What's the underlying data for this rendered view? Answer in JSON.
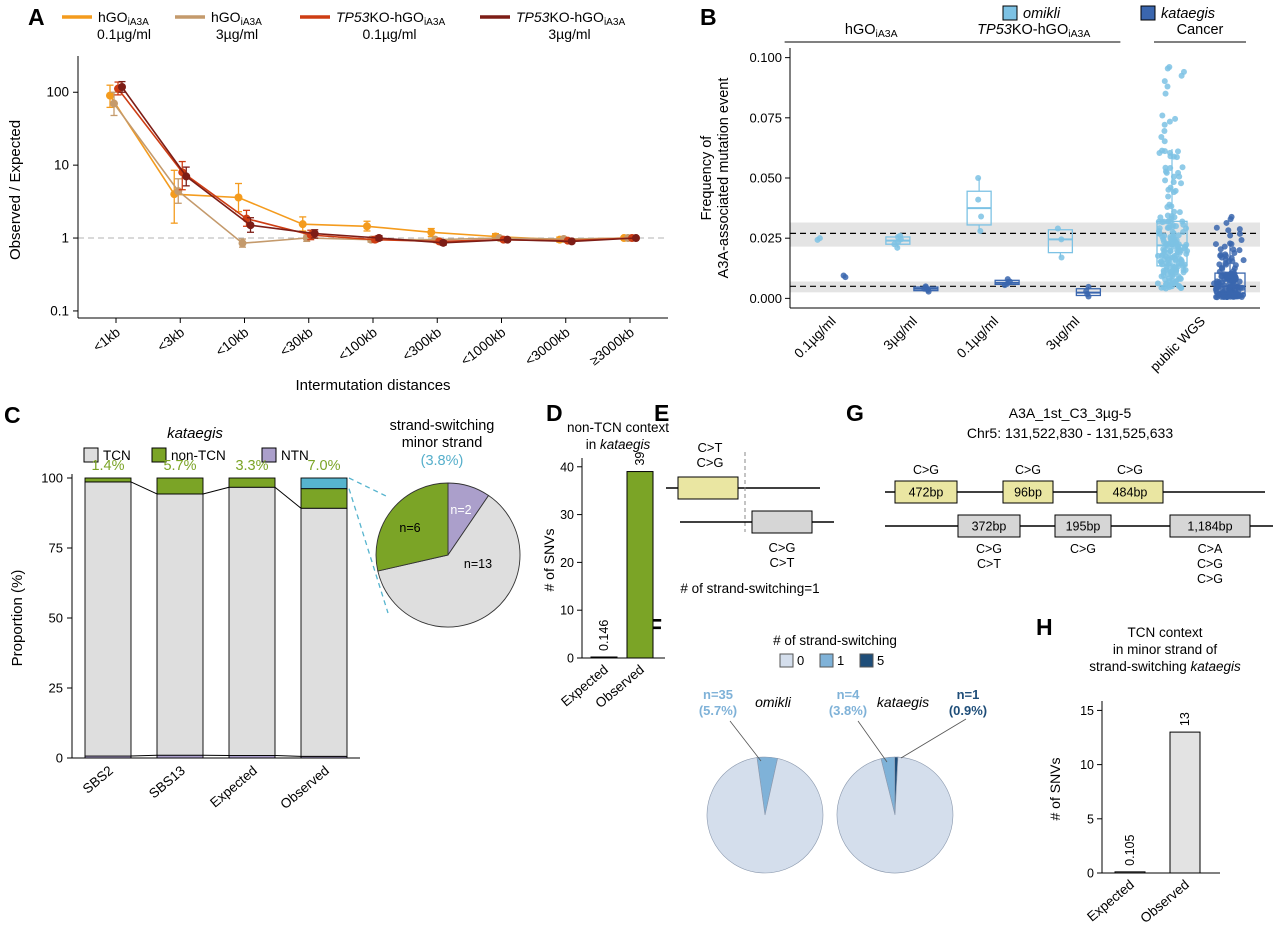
{
  "panels": {
    "A": {
      "label": "A",
      "legend": [
        {
          "prefix_italic": "",
          "name": "hGO",
          "sub": "iA3A",
          "dose": "0.1µg/ml",
          "color": "#F49B1D"
        },
        {
          "prefix_italic": "",
          "name": "hGO",
          "sub": "iA3A",
          "dose": "3µg/ml",
          "color": "#C49A6C"
        },
        {
          "prefix_italic": "TP53",
          "name": "KO-hGO",
          "sub": "iA3A",
          "dose": "0.1µg/ml",
          "color": "#CE3D13"
        },
        {
          "prefix_italic": "TP53",
          "name": "KO-hGO",
          "sub": "iA3A",
          "dose": "3µg/ml",
          "color": "#7D1D16"
        }
      ]
    },
    "B": {
      "label": "B",
      "legend": [
        {
          "label": "omikli",
          "color": "#7DC2E4"
        },
        {
          "label": "kataegis",
          "color": "#3A66AE"
        }
      ]
    },
    "C": {
      "label": "C",
      "title": "kataegis",
      "legend": [
        {
          "label": "TCN",
          "color": "#DEDEDE"
        },
        {
          "label": "non-TCN",
          "color": "#7BA426"
        },
        {
          "label": "NTN",
          "color": "#AB9FCB"
        }
      ]
    },
    "D": {
      "label": "D",
      "title_line1": "non-TCN context",
      "title_line2_prefix": "in ",
      "title_line2_italic": "kataegis"
    },
    "E": {
      "label": "E",
      "top_mut_labels": [
        "C>T",
        "C>G"
      ],
      "bottom_mut_labels": [
        "C>G",
        "C>T"
      ],
      "caption": "# of strand-switching=1",
      "top_box_color": "#EAE6A2",
      "bottom_box_color": "#D6D6D6"
    },
    "F": {
      "label": "F"
    },
    "G": {
      "label": "G",
      "title": "A3A_1st_C3_3µg-5",
      "subtitle": "Chr5: 131,522,830 - 131,525,633",
      "top_box_color": "#EAE6A2",
      "bottom_box_color": "#D6D6D6",
      "top_boxes": [
        {
          "label": "472bp",
          "muts": [
            "C>G"
          ]
        },
        {
          "label": "96bp",
          "muts": [
            "C>G"
          ]
        },
        {
          "label": "484bp",
          "muts": [
            "C>G"
          ]
        }
      ],
      "bottom_boxes": [
        {
          "label": "372bp",
          "muts": [
            "C>G",
            "C>T"
          ]
        },
        {
          "label": "195bp",
          "muts": [
            "C>G"
          ]
        },
        {
          "label": "1,184bp",
          "muts": [
            "C>A",
            "C>G",
            "C>G"
          ]
        }
      ]
    },
    "H": {
      "label": "H",
      "title_line1": "TCN context",
      "title_line2": "in minor strand of",
      "title_line3_prefix": "strand-switching ",
      "title_line3_italic": "kataegis"
    }
  },
  "chart_data": [
    {
      "panel": "A",
      "type": "line",
      "x": [
        "<1kb",
        "<3kb",
        "<10kb",
        "<30kb",
        "<100kb",
        "<300kb",
        "<1000kb",
        "<3000kb",
        "≥3000kb"
      ],
      "xlabel": "Intermutation distances",
      "ylabel": "Observed / Expected",
      "yscale": "log",
      "yticks": [
        0.1,
        1,
        10,
        100
      ],
      "ylim": [
        0.08,
        260
      ],
      "refline": 1,
      "series": [
        {
          "key": "hGO-0.1ug",
          "color": "#F49B1D",
          "values": [
            90,
            4.0,
            3.6,
            1.55,
            1.45,
            1.2,
            1.05,
            0.95,
            1.0
          ],
          "err_lo": [
            62,
            1.6,
            2.3,
            1.25,
            1.25,
            1.05,
            0.95,
            0.88,
            0.97
          ],
          "err_hi": [
            125,
            8.5,
            5.6,
            1.95,
            1.7,
            1.35,
            1.15,
            1.03,
            1.03
          ]
        },
        {
          "key": "hGO-3ug",
          "color": "#C49A6C",
          "values": [
            70,
            4.4,
            0.85,
            1.0,
            0.95,
            0.95,
            1.0,
            0.97,
            1.0
          ],
          "err_lo": [
            48,
            3.0,
            0.75,
            0.9,
            0.88,
            0.9,
            0.95,
            0.93,
            0.98
          ],
          "err_hi": [
            100,
            6.5,
            0.97,
            1.1,
            1.03,
            1.0,
            1.05,
            1.01,
            1.02
          ]
        },
        {
          "key": "TP53KO-0.1ug",
          "color": "#CE3D13",
          "values": [
            112,
            8.0,
            1.85,
            1.1,
            0.95,
            0.9,
            0.95,
            0.92,
            1.0
          ],
          "err_lo": [
            92,
            4.6,
            1.45,
            0.95,
            0.88,
            0.85,
            0.9,
            0.88,
            0.97
          ],
          "err_hi": [
            138,
            11.2,
            2.4,
            1.28,
            1.05,
            0.96,
            1.0,
            0.96,
            1.03
          ]
        },
        {
          "key": "TP53KO-3ug",
          "color": "#7D1D16",
          "values": [
            118,
            7.0,
            1.5,
            1.15,
            1.0,
            0.86,
            0.95,
            0.9,
            1.0
          ],
          "err_lo": [
            100,
            5.2,
            1.2,
            1.0,
            0.93,
            0.8,
            0.9,
            0.86,
            0.97
          ],
          "err_hi": [
            140,
            9.4,
            1.9,
            1.3,
            1.08,
            0.92,
            1.0,
            0.94,
            1.03
          ]
        }
      ]
    },
    {
      "panel": "B",
      "type": "box-dot",
      "ylabel_line1": "Frequency of",
      "ylabel_line2": "A3A-associated  mutation event",
      "yticks": [
        0,
        0.025,
        0.05,
        0.075,
        0.1
      ],
      "ylim": [
        -0.004,
        0.104
      ],
      "categories": [
        "0.1µg/ml",
        "3µg/ml",
        "0.1µg/ml",
        "3µg/ml",
        "public WGS"
      ],
      "groups": [
        {
          "label_italic": "",
          "label": "hGO",
          "sub": "iA3A",
          "cats": [
            0,
            1
          ]
        },
        {
          "label_italic": "TP53",
          "label": "KO-hGO",
          "sub": "iA3A",
          "cats": [
            2,
            3
          ]
        },
        {
          "label_italic": "",
          "label": "Cancer",
          "sub": "",
          "cats": [
            4,
            4
          ]
        }
      ],
      "reflines": [
        {
          "y": 0.027,
          "band_lo": 0.0215,
          "band_hi": 0.0315
        },
        {
          "y": 0.005,
          "band_lo": 0.0025,
          "band_hi": 0.007
        }
      ],
      "series": [
        {
          "name": "omikli",
          "color": "#7DC2E4",
          "data": [
            {
              "dots": [
                0.0243,
                0.025
              ],
              "box": null
            },
            {
              "dots": [
                0.021,
                0.0225,
                0.0235,
                0.0245,
                0.0255,
                0.026
              ],
              "box": {
                "q1": 0.0225,
                "med": 0.024,
                "q3": 0.0255,
                "lo": 0.021,
                "hi": 0.026
              }
            },
            {
              "dots": [
                0.028,
                0.034,
                0.041,
                0.05
              ],
              "box": {
                "q1": 0.0305,
                "med": 0.0375,
                "q3": 0.0445,
                "lo": 0.028,
                "hi": 0.05
              }
            },
            {
              "dots": [
                0.017,
                0.0245,
                0.029
              ],
              "box": {
                "q1": 0.019,
                "med": 0.0245,
                "q3": 0.0285,
                "lo": 0.017,
                "hi": 0.029
              }
            },
            {
              "gen": {
                "n": 190,
                "min": 0.004,
                "q1": 0.0135,
                "med": 0.022,
                "q3": 0.032,
                "whi": 0.062,
                "max": 0.098
              },
              "box": {
                "q1": 0.0135,
                "med": 0.022,
                "q3": 0.032,
                "lo": 0.004,
                "hi": 0.062
              }
            }
          ]
        },
        {
          "name": "kataegis",
          "color": "#3A66AE",
          "data": [
            {
              "dots": [
                0.0088,
                0.0095
              ],
              "box": null
            },
            {
              "dots": [
                0.0028,
                0.0035,
                0.004,
                0.0045,
                0.005
              ],
              "box": {
                "q1": 0.0032,
                "med": 0.004,
                "q3": 0.0047,
                "lo": 0.0028,
                "hi": 0.005
              }
            },
            {
              "dots": [
                0.0055,
                0.006,
                0.007,
                0.008
              ],
              "box": {
                "q1": 0.0058,
                "med": 0.0065,
                "q3": 0.0075,
                "lo": 0.0055,
                "hi": 0.008
              }
            },
            {
              "dots": [
                0.0008,
                0.0018,
                0.003,
                0.0048
              ],
              "box": {
                "q1": 0.0012,
                "med": 0.0024,
                "q3": 0.004,
                "lo": 0.0008,
                "hi": 0.0048
              }
            },
            {
              "gen": {
                "n": 160,
                "min": 0.0004,
                "q1": 0.002,
                "med": 0.005,
                "q3": 0.0105,
                "whi": 0.023,
                "max": 0.034
              },
              "box": {
                "q1": 0.002,
                "med": 0.005,
                "q3": 0.0105,
                "lo": 0.0004,
                "hi": 0.023
              }
            }
          ]
        }
      ]
    },
    {
      "panel": "C",
      "type": "stacked-bar",
      "ylabel": "Proportion (%)",
      "yticks": [
        0,
        25,
        50,
        75,
        100
      ],
      "categories": [
        "SBS2",
        "SBS13",
        "Expected",
        "Observed"
      ],
      "top_labels": [
        "1.4%",
        "5.7%",
        "3.3%",
        "7.0%"
      ],
      "top_label_color": "#7BA426",
      "ss_color": "#56B4CE",
      "bars": [
        {
          "ntn": 0.7,
          "tcn": 97.9,
          "non_tcn": 1.4,
          "ss": 0
        },
        {
          "ntn": 1.0,
          "tcn": 93.3,
          "non_tcn": 5.7,
          "ss": 0
        },
        {
          "ntn": 0.9,
          "tcn": 95.8,
          "non_tcn": 3.3,
          "ss": 0
        },
        {
          "ntn": 0.6,
          "tcn": 88.6,
          "non_tcn": 7.0,
          "ss": 3.8
        }
      ],
      "pie": {
        "title_line1": "strand-switching",
        "title_line2": "minor strand",
        "pct_label": "(3.8%)",
        "pct_color": "#56AFCB",
        "slices": [
          {
            "label": "n=2",
            "value": 2,
            "color": "#AB9FCB",
            "label_color": "#ffffff"
          },
          {
            "label": "n=13",
            "value": 13,
            "color": "#DEDEDE",
            "label_color": "#000000"
          },
          {
            "label": "n=6",
            "value": 6,
            "color": "#7BA426",
            "label_color": "#000000"
          }
        ]
      }
    },
    {
      "panel": "D",
      "type": "bar",
      "ylabel": "# of SNVs",
      "categories": [
        "Expected",
        "Observed"
      ],
      "values": [
        0.146,
        39
      ],
      "value_labels": [
        "0.146",
        "39"
      ],
      "colors": [
        "#E8E8E8",
        "#7BA426"
      ],
      "yticks": [
        0,
        10,
        20,
        30,
        40
      ],
      "ylim": [
        0,
        41
      ]
    },
    {
      "panel": "F",
      "type": "pie",
      "title": "# of strand-switching",
      "legend": [
        {
          "label": "0",
          "color": "#D4DEEC"
        },
        {
          "label": "1",
          "color": "#7FB2D8"
        },
        {
          "label": "5",
          "color": "#1F4E79"
        }
      ],
      "pies": [
        {
          "name": "omikli",
          "slices": [
            {
              "key": "1",
              "pct": 5.7
            },
            {
              "key": "0",
              "pct": 94.3
            }
          ],
          "annotations": [
            {
              "line1": "n=35",
              "line2": "(5.7%)",
              "color": "#7FB2D8"
            }
          ]
        },
        {
          "name": "kataegis",
          "slices": [
            {
              "key": "1",
              "pct": 3.8
            },
            {
              "key": "5",
              "pct": 0.9
            },
            {
              "key": "0",
              "pct": 95.3
            }
          ],
          "annotations": [
            {
              "line1": "n=4",
              "line2": "(3.8%)",
              "color": "#7FB2D8"
            },
            {
              "line1": "n=1",
              "line2": "(0.9%)",
              "color": "#1F4E79"
            }
          ]
        }
      ]
    },
    {
      "panel": "H",
      "type": "bar",
      "ylabel": "# of SNVs",
      "categories": [
        "Expected",
        "Observed"
      ],
      "values": [
        0.105,
        13
      ],
      "value_labels": [
        "0.105",
        "13"
      ],
      "colors": [
        "#E8E8E8",
        "#E3E3E3"
      ],
      "yticks": [
        0,
        5,
        10,
        15
      ],
      "ylim": [
        0,
        15.5
      ]
    }
  ]
}
